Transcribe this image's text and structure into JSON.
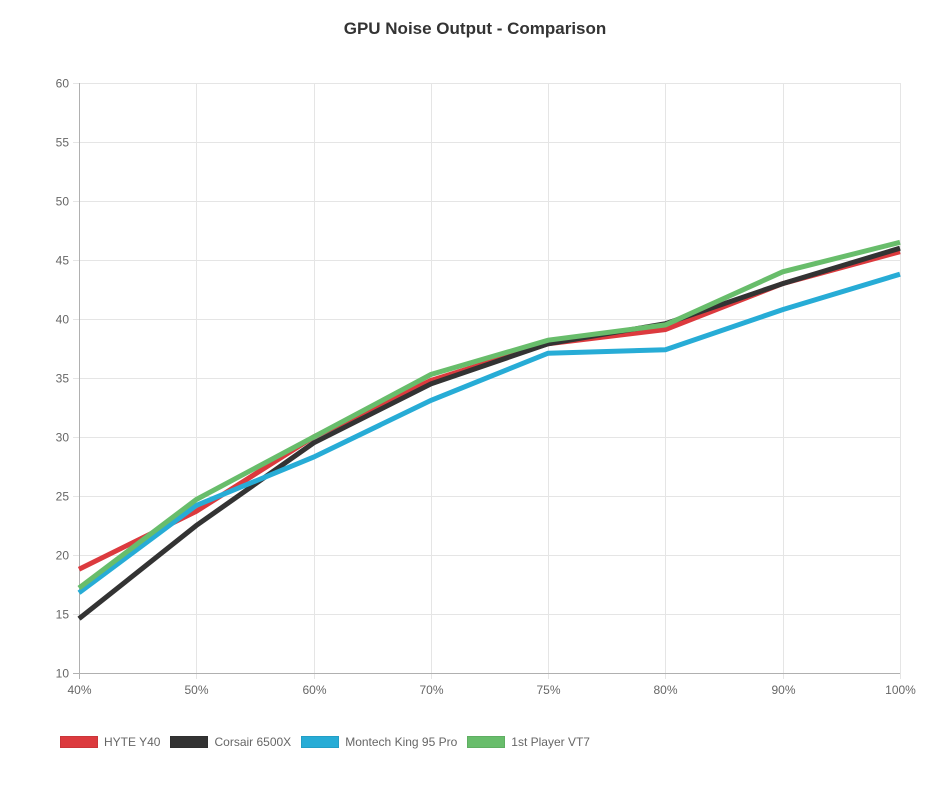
{
  "chart_data": {
    "type": "line",
    "title": "GPU Noise Output - Comparison",
    "xlabel": "",
    "ylabel": "",
    "categories": [
      "40%",
      "50%",
      "60%",
      "70%",
      "75%",
      "80%",
      "90%",
      "100%"
    ],
    "ylim": [
      10,
      60
    ],
    "yticks": [
      10,
      15,
      20,
      25,
      30,
      35,
      40,
      45,
      50,
      55,
      60
    ],
    "grid": true,
    "legend_position": "bottom-left",
    "series": [
      {
        "name": "HYTE Y40",
        "color": "#dc3a3e",
        "values": [
          18.8,
          23.7,
          30.0,
          34.8,
          37.9,
          39.1,
          43.0,
          45.7
        ]
      },
      {
        "name": "Corsair 6500X",
        "color": "#333333",
        "values": [
          14.6,
          22.5,
          29.5,
          34.5,
          37.9,
          39.6,
          43.0,
          46.0
        ]
      },
      {
        "name": "Montech King 95 Pro",
        "color": "#27acd6",
        "values": [
          16.8,
          24.2,
          28.3,
          33.1,
          37.1,
          37.4,
          40.8,
          43.8
        ]
      },
      {
        "name": "1st Player VT7",
        "color": "#68bd6b",
        "values": [
          17.2,
          24.7,
          30.0,
          35.3,
          38.2,
          39.5,
          44.0,
          46.5
        ]
      }
    ]
  }
}
